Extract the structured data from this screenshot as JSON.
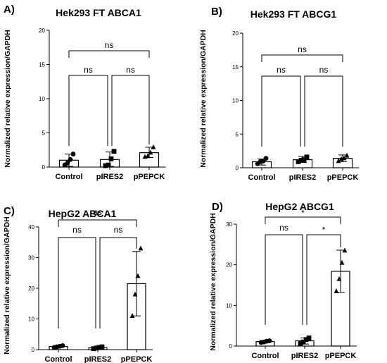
{
  "chart_data": [
    {
      "type": "bar",
      "panel_label": "A)",
      "title": "Hek293 FT ABCA1",
      "ylabel": "Normalized relative expression/GAPDH",
      "ylim": [
        0,
        20
      ],
      "yticks": [
        0,
        5,
        10,
        15,
        20
      ],
      "categories": [
        "Control",
        "pIRES2",
        "pPEPCK"
      ],
      "values": [
        1.0,
        1.1,
        2.1
      ],
      "error": [
        [
          0.1,
          1.9
        ],
        [
          0.1,
          2.2
        ],
        [
          1.4,
          2.9
        ]
      ],
      "points": [
        [
          0.3,
          0.6,
          1.1,
          1.9
        ],
        [
          0.2,
          0.3,
          1.2,
          2.3
        ],
        [
          1.5,
          1.6,
          2.1,
          2.9
        ]
      ],
      "marker": [
        "circle",
        "square",
        "triangle"
      ],
      "comparisons": [
        {
          "from": 0,
          "to": 1,
          "label": "ns"
        },
        {
          "from": 1,
          "to": 2,
          "label": "ns"
        },
        {
          "from": 0,
          "to": 2,
          "label": "ns"
        }
      ]
    },
    {
      "type": "bar",
      "panel_label": "B)",
      "title": "Hek293 FT ABCG1",
      "ylabel": "Normalized relative expression/GAPDH",
      "ylim": [
        0,
        20
      ],
      "yticks": [
        0,
        5,
        10,
        15,
        20
      ],
      "categories": [
        "Control",
        "pIRES2",
        "pPEPCK"
      ],
      "values": [
        0.9,
        1.2,
        1.4
      ],
      "error": [
        [
          0.4,
          1.3
        ],
        [
          0.8,
          1.7
        ],
        [
          0.9,
          1.9
        ]
      ],
      "points": [
        [
          0.6,
          0.9,
          1.0,
          1.4
        ],
        [
          0.9,
          1.1,
          1.2,
          1.6
        ],
        [
          1.0,
          1.3,
          1.4,
          1.8
        ]
      ],
      "marker": [
        "circle",
        "square",
        "triangle"
      ],
      "comparisons": [
        {
          "from": 0,
          "to": 1,
          "label": "ns"
        },
        {
          "from": 1,
          "to": 2,
          "label": "ns"
        },
        {
          "from": 0,
          "to": 2,
          "label": "ns"
        }
      ]
    },
    {
      "type": "bar",
      "panel_label": "C)",
      "title": "HepG2 ABCA1",
      "ylabel": "Normalized relative expression/GAPDH",
      "ylim": [
        0,
        40
      ],
      "yticks": [
        0,
        10,
        20,
        30,
        40
      ],
      "categories": [
        "Control",
        "pIRES2",
        "pPEPCK"
      ],
      "values": [
        1.0,
        0.6,
        21.5
      ],
      "error": [
        [
          0.7,
          1.3
        ],
        [
          0.3,
          0.9
        ],
        [
          11.0,
          32.0
        ]
      ],
      "points": [
        [
          0.7,
          0.9,
          1.1,
          1.3
        ],
        [
          0.3,
          0.5,
          0.7,
          0.9
        ],
        [
          11.0,
          18.0,
          24.0,
          33.0
        ]
      ],
      "marker": [
        "circle",
        "square",
        "triangle"
      ],
      "comparisons": [
        {
          "from": 0,
          "to": 1,
          "label": "ns"
        },
        {
          "from": 1,
          "to": 2,
          "label": "ns"
        },
        {
          "from": 0,
          "to": 2,
          "label": "ns"
        }
      ]
    },
    {
      "type": "bar",
      "panel_label": "D)",
      "title": "HepG2 ABCG1",
      "ylabel": "Normalized relative expression/GAPDH",
      "ylim": [
        0,
        30
      ],
      "yticks": [
        0,
        10,
        20,
        30
      ],
      "categories": [
        "Control",
        "pIRES2",
        "pPEPCK"
      ],
      "values": [
        1.1,
        1.3,
        18.4
      ],
      "error": [
        [
          0.9,
          1.3
        ],
        [
          0.5,
          2.0
        ],
        [
          13.2,
          23.6
        ]
      ],
      "points": [
        [
          0.9,
          1.0,
          1.2,
          1.3
        ],
        [
          0.6,
          1.0,
          1.6,
          2.0
        ],
        [
          13.5,
          16.5,
          20.5,
          23.5
        ]
      ],
      "marker": [
        "circle",
        "square",
        "triangle"
      ],
      "comparisons": [
        {
          "from": 0,
          "to": 1,
          "label": "ns"
        },
        {
          "from": 1,
          "to": 2,
          "label": "*"
        },
        {
          "from": 0,
          "to": 2,
          "label": "*"
        }
      ]
    }
  ]
}
